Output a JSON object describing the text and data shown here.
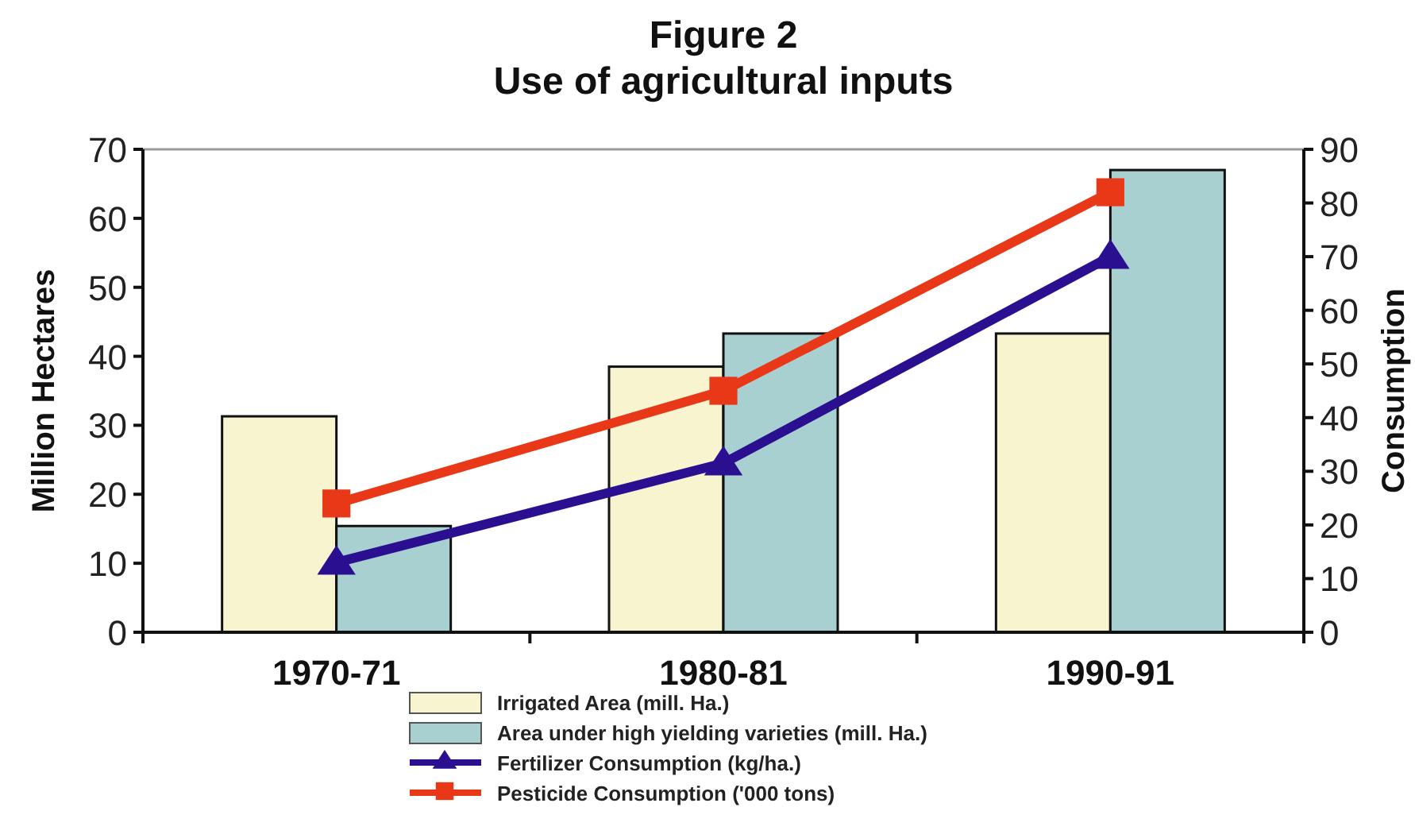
{
  "chart_data": {
    "type": "bar",
    "title": "Figure 2\nUse of agricultural inputs",
    "ylabel": "Million Hectares",
    "y2label": "Consumption",
    "categories": [
      "1970-71",
      "1980-81",
      "1990-91"
    ],
    "series": [
      {
        "name": "Irrigated Area (mill. Ha.)",
        "color": "#f8f4d0",
        "values": [
          31.3,
          38.5,
          43.3
        ]
      },
      {
        "name": "Area under high yielding varieties (mill. Ha.)",
        "color": "#a8d0d0",
        "values": [
          15.4,
          43.3,
          67
        ]
      },
      {
        "name": "Fertilizer Consumption (kg/ha.)",
        "type": "line",
        "axis": "y2",
        "marker": "triangle",
        "color": "#2a1090",
        "values": [
          13,
          31.5,
          70
        ]
      },
      {
        "name": "Pesticide Consumption ('000 tons)",
        "type": "line",
        "axis": "y2",
        "marker": "square",
        "color": "#e83818",
        "values": [
          24,
          45,
          82
        ]
      }
    ],
    "ylim": [
      0,
      70
    ],
    "yticks": [
      0,
      10,
      20,
      30,
      40,
      50,
      60,
      70
    ],
    "y2lim": [
      0,
      90
    ],
    "y2ticks": [
      0,
      10,
      20,
      30,
      40,
      50,
      60,
      70,
      80,
      90
    ],
    "grid": false,
    "legend": "bottom"
  }
}
